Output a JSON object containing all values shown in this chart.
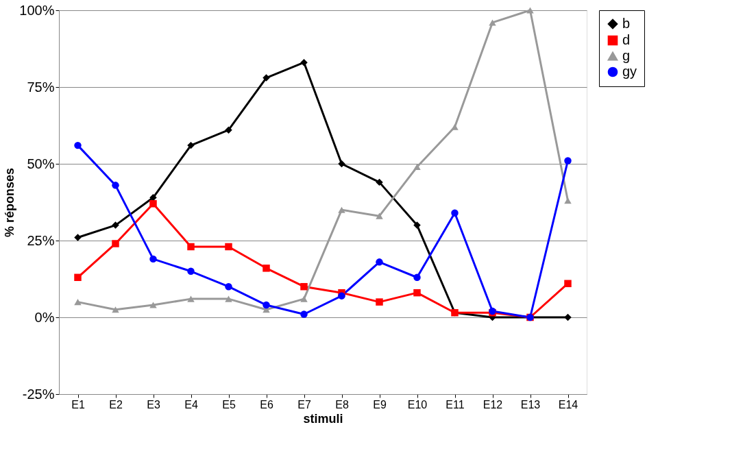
{
  "chart_data": {
    "type": "line",
    "xlabel": "stimuli",
    "ylabel": "% réponses",
    "categories": [
      "E1",
      "E2",
      "E3",
      "E4",
      "E5",
      "E6",
      "E7",
      "E8",
      "E9",
      "E10",
      "E11",
      "E12",
      "E13",
      "E14"
    ],
    "series": [
      {
        "name": "b",
        "color": "#000000",
        "marker": "diamond",
        "values": [
          26,
          30,
          39,
          56,
          61,
          78,
          83,
          50,
          44,
          30,
          1.5,
          0,
          0,
          0
        ]
      },
      {
        "name": "d",
        "color": "#ff0000",
        "marker": "square",
        "values": [
          13,
          24,
          37,
          23,
          23,
          16,
          10,
          8,
          5,
          8,
          1.5,
          1.5,
          0,
          11
        ]
      },
      {
        "name": "g",
        "color": "#999999",
        "marker": "triangle",
        "values": [
          5,
          2.5,
          4,
          6,
          6,
          2.5,
          6,
          35,
          33,
          49,
          62,
          96,
          100,
          38
        ]
      },
      {
        "name": "gy",
        "color": "#0000ff",
        "marker": "circle",
        "values": [
          56,
          43,
          19,
          15,
          10,
          4,
          1,
          7,
          18,
          13,
          34,
          2,
          0,
          51
        ]
      }
    ],
    "ylim": [
      -25,
      100
    ],
    "yticks": [
      {
        "value": -25,
        "label": "-25%"
      },
      {
        "value": 0,
        "label": "0%"
      },
      {
        "value": 25,
        "label": "25%"
      },
      {
        "value": 50,
        "label": "50%"
      },
      {
        "value": 75,
        "label": "75%"
      },
      {
        "value": 100,
        "label": "100%"
      }
    ],
    "grid": "y",
    "legend": "right"
  }
}
